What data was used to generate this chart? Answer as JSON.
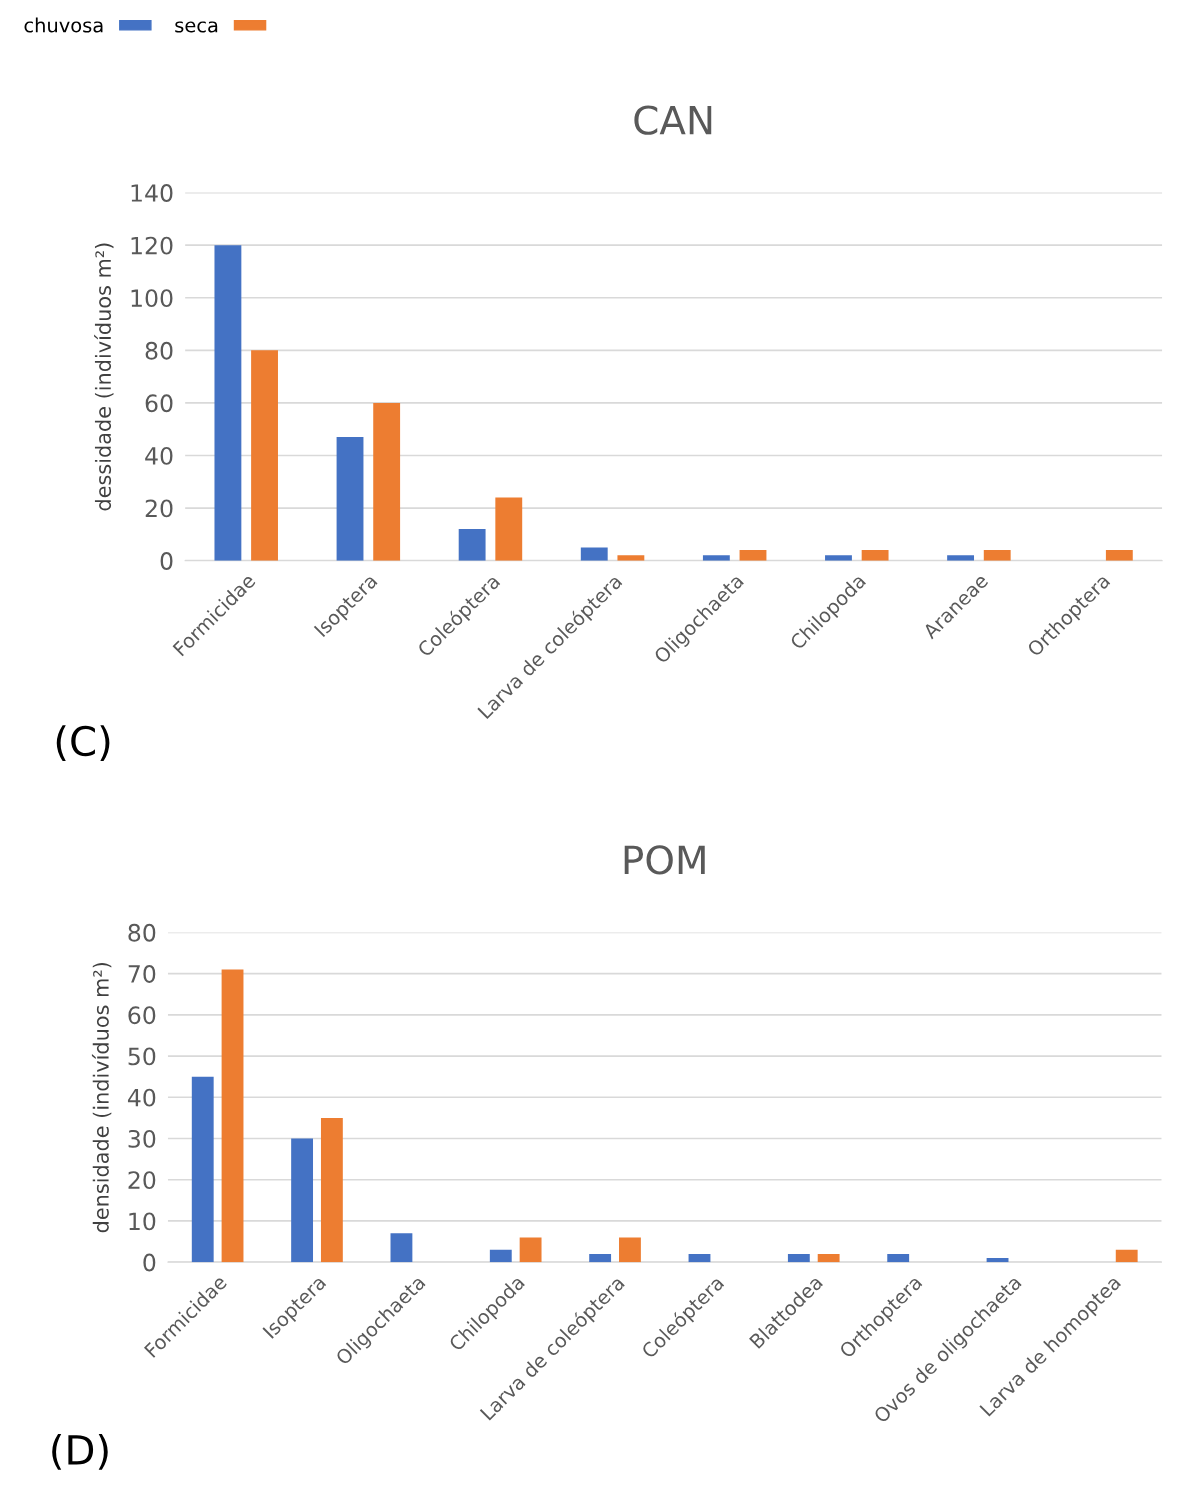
{
  "chart_data": [
    {
      "type": "bar",
      "title": "CAN",
      "ylabel": "dessidade (indivíduos m²)",
      "categories": [
        "Formicidae",
        "Isoptera",
        "Coleóptera",
        "Larva de coleóptera",
        "Oligochaeta",
        "Chilopoda",
        "Araneae",
        "Orthoptera"
      ],
      "series": [
        {
          "name": "chuvosa",
          "color": "#4472c4",
          "values": [
            120,
            47,
            12,
            5,
            2,
            2,
            2,
            null
          ]
        },
        {
          "name": "seca",
          "color": "#ed7d31",
          "values": [
            80,
            60,
            24,
            2,
            4,
            4,
            4,
            4
          ]
        }
      ],
      "ylim": [
        0,
        140
      ],
      "yticks": [
        0,
        20,
        40,
        60,
        80,
        100,
        120,
        140
      ],
      "grid": "y",
      "legend": "top left",
      "annotations": [
        "(C)"
      ]
    },
    {
      "type": "bar",
      "title": "POM",
      "ylabel": "densidade (indivíduos m²)",
      "categories": [
        "Formicidae",
        "Isoptera",
        "Oligochaeta",
        "Chilopoda",
        "Larva de coleóptera",
        "Coleóptera",
        "Blattodea",
        "Orthoptera",
        "Ovos de oligochaeta",
        "Larva de homoptea"
      ],
      "series": [
        {
          "color": "#4472c4",
          "values": [
            45,
            30,
            7,
            3,
            2,
            2,
            2,
            2,
            1,
            null
          ]
        },
        {
          "color": "#ed7d31",
          "values": [
            71,
            35,
            null,
            6,
            6,
            null,
            2,
            null,
            null,
            3
          ]
        }
      ],
      "ylim": [
        0,
        80
      ],
      "yticks": [
        0,
        10,
        20,
        30,
        40,
        50,
        60,
        70,
        80
      ],
      "grid": "y",
      "annotations": [
        "(D)"
      ]
    }
  ]
}
